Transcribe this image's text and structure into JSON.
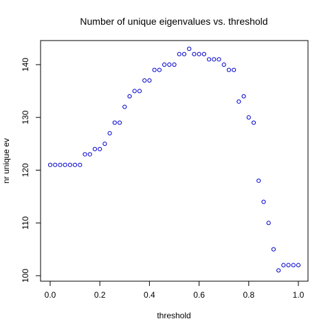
{
  "chart_data": {
    "type": "scatter",
    "title": "Number of unique eigenvalues vs. threshold",
    "xlabel": "threshold",
    "ylabel": "nr unique ev",
    "xlim": [
      0.0,
      1.0
    ],
    "ylim": [
      100,
      143
    ],
    "xticks": [
      0.0,
      0.2,
      0.4,
      0.6,
      0.8,
      1.0
    ],
    "xtick_labels": [
      "0.0",
      "0.2",
      "0.4",
      "0.6",
      "0.8",
      "1.0"
    ],
    "yticks": [
      100,
      110,
      120,
      130,
      140
    ],
    "ytick_labels": [
      "100",
      "110",
      "120",
      "130",
      "140"
    ],
    "grid": false,
    "marker_color": "#0000cc",
    "series": [
      {
        "x": [
          0.0,
          0.02,
          0.04,
          0.06,
          0.08,
          0.1,
          0.12,
          0.14,
          0.16,
          0.18,
          0.2,
          0.22,
          0.24,
          0.26,
          0.28,
          0.3,
          0.32,
          0.34,
          0.36,
          0.38,
          0.4,
          0.42,
          0.44,
          0.46,
          0.48,
          0.5,
          0.52,
          0.54,
          0.56,
          0.58,
          0.6,
          0.62,
          0.64,
          0.66,
          0.68,
          0.7,
          0.72,
          0.74,
          0.76,
          0.78,
          0.8,
          0.82,
          0.84,
          0.86,
          0.88,
          0.9,
          0.92,
          0.94,
          0.96,
          0.98,
          1.0
        ],
        "y": [
          121,
          121,
          121,
          121,
          121,
          121,
          121,
          123,
          123,
          124,
          124,
          125,
          127,
          129,
          129,
          132,
          134,
          135,
          135,
          137,
          137,
          139,
          139,
          140,
          140,
          140,
          142,
          142,
          143,
          142,
          142,
          142,
          141,
          141,
          141,
          140,
          139,
          139,
          133,
          134,
          130,
          129,
          118,
          114,
          110,
          105,
          101,
          102,
          102,
          102,
          102
        ]
      }
    ]
  }
}
